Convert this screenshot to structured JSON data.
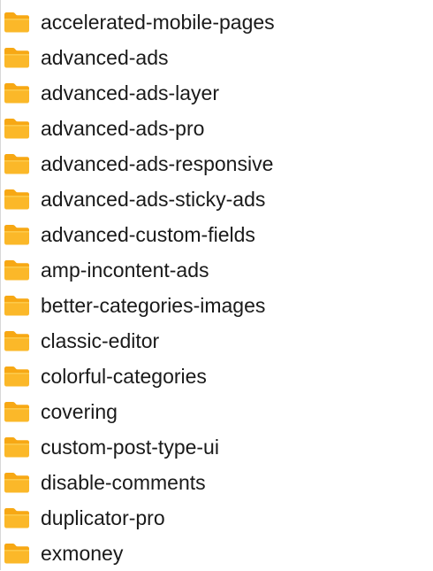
{
  "colors": {
    "folder_body": "#fbb829",
    "folder_tab": "#f7a814",
    "folder_highlight": "#fcc94a",
    "text": "#1a1a1a"
  },
  "file_list": {
    "icon": "folder-icon",
    "items": [
      {
        "name": "accelerated-mobile-pages"
      },
      {
        "name": "advanced-ads"
      },
      {
        "name": "advanced-ads-layer"
      },
      {
        "name": "advanced-ads-pro"
      },
      {
        "name": "advanced-ads-responsive"
      },
      {
        "name": "advanced-ads-sticky-ads"
      },
      {
        "name": "advanced-custom-fields"
      },
      {
        "name": "amp-incontent-ads"
      },
      {
        "name": "better-categories-images"
      },
      {
        "name": "classic-editor"
      },
      {
        "name": "colorful-categories"
      },
      {
        "name": "covering"
      },
      {
        "name": "custom-post-type-ui"
      },
      {
        "name": "disable-comments"
      },
      {
        "name": "duplicator-pro"
      },
      {
        "name": "exmoney"
      }
    ]
  }
}
